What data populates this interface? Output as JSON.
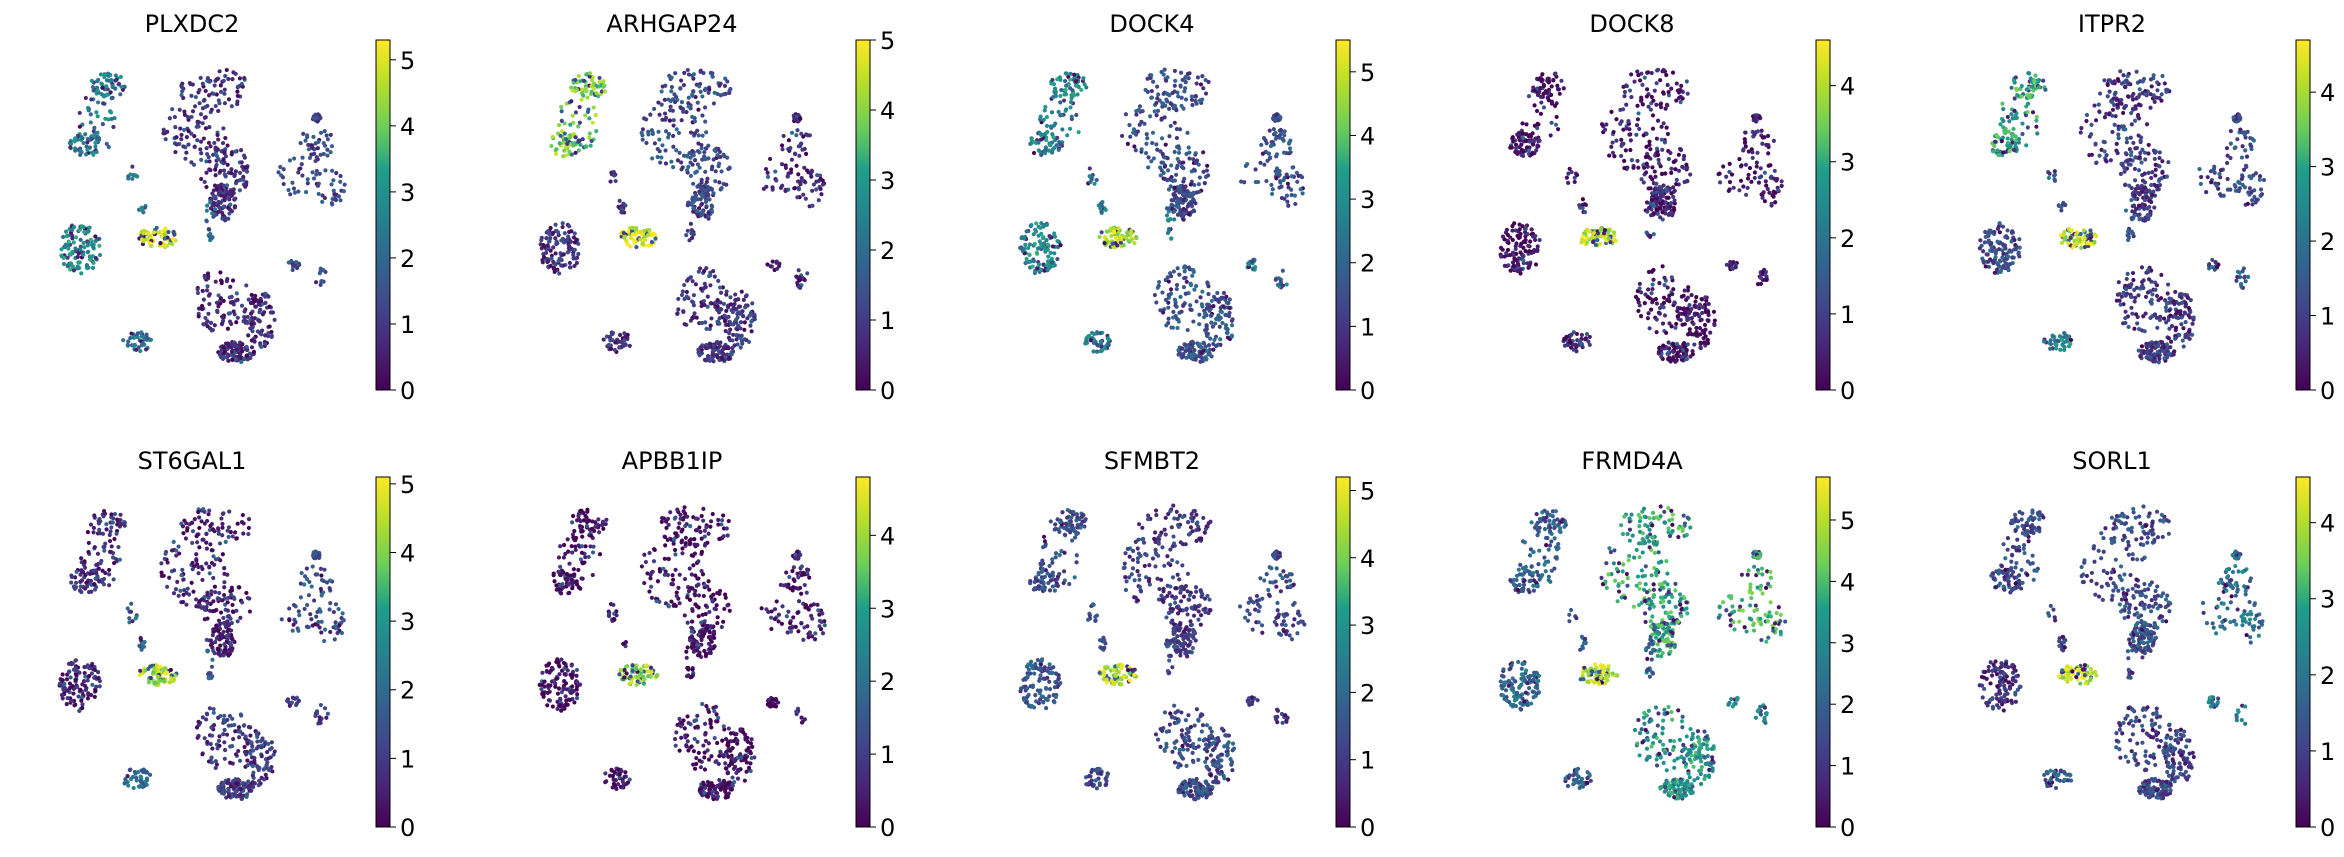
{
  "colormap": "viridis",
  "chart_data": [
    {
      "type": "scatter",
      "title": "PLXDC2",
      "colorbar": {
        "vmin": 0,
        "vmax": 5.3,
        "ticks": [
          0,
          1,
          2,
          3,
          4,
          5
        ]
      },
      "cluster_levels": {
        "top_left": 2.6,
        "small_strand": 2.2,
        "top_center": 0.8,
        "right": 1.3,
        "left": 2.9,
        "center_bright": 4.9,
        "bottom_center": 0.6,
        "bottom_small": 2.1,
        "right_small": 1.2
      }
    },
    {
      "type": "scatter",
      "title": "ARHGAP24",
      "colorbar": {
        "vmin": 0,
        "vmax": 5.0,
        "ticks": [
          0,
          1,
          2,
          3,
          4,
          5
        ]
      },
      "cluster_levels": {
        "top_left": 3.9,
        "small_strand": 1.1,
        "top_center": 1.3,
        "right": 0.5,
        "left": 0.8,
        "center_bright": 4.6,
        "bottom_center": 0.8,
        "bottom_small": 0.7,
        "right_small": 0.6
      }
    },
    {
      "type": "scatter",
      "title": "DOCK4",
      "colorbar": {
        "vmin": 0,
        "vmax": 5.5,
        "ticks": [
          0,
          1,
          2,
          3,
          4,
          5
        ]
      },
      "cluster_levels": {
        "top_left": 3.0,
        "small_strand": 2.5,
        "top_center": 1.5,
        "right": 1.6,
        "left": 3.0,
        "center_bright": 4.8,
        "bottom_center": 1.7,
        "bottom_small": 2.6,
        "right_small": 2.8
      }
    },
    {
      "type": "scatter",
      "title": "DOCK8",
      "colorbar": {
        "vmin": 0,
        "vmax": 4.6,
        "ticks": [
          0,
          1,
          2,
          3,
          4
        ]
      },
      "cluster_levels": {
        "top_left": 0.2,
        "small_strand": 0.4,
        "top_center": 0.3,
        "right": 0.3,
        "left": 0.2,
        "center_bright": 4.1,
        "bottom_center": 0.2,
        "bottom_small": 0.3,
        "right_small": 0.4
      }
    },
    {
      "type": "scatter",
      "title": "ITPR2",
      "colorbar": {
        "vmin": 0,
        "vmax": 4.7,
        "ticks": [
          0,
          1,
          2,
          3,
          4
        ]
      },
      "cluster_levels": {
        "top_left": 3.0,
        "small_strand": 1.5,
        "top_center": 0.9,
        "right": 1.2,
        "left": 1.3,
        "center_bright": 4.2,
        "bottom_center": 0.8,
        "bottom_small": 2.6,
        "right_small": 1.4
      }
    },
    {
      "type": "scatter",
      "title": "ST6GAL1",
      "colorbar": {
        "vmin": 0,
        "vmax": 5.1,
        "ticks": [
          0,
          1,
          2,
          3,
          4,
          5
        ]
      },
      "cluster_levels": {
        "top_left": 0.7,
        "small_strand": 1.8,
        "top_center": 0.5,
        "right": 1.4,
        "left": 0.5,
        "center_bright": 4.4,
        "bottom_center": 0.9,
        "bottom_small": 1.9,
        "right_small": 1.0
      }
    },
    {
      "type": "scatter",
      "title": "APBB1IP",
      "colorbar": {
        "vmin": 0,
        "vmax": 4.8,
        "ticks": [
          0,
          1,
          2,
          3,
          4
        ]
      },
      "cluster_levels": {
        "top_left": 0.1,
        "small_strand": 0.2,
        "top_center": 0.1,
        "right": 0.2,
        "left": 0.1,
        "center_bright": 3.9,
        "bottom_center": 0.1,
        "bottom_small": 0.2,
        "right_small": 0.2
      }
    },
    {
      "type": "scatter",
      "title": "SFMBT2",
      "colorbar": {
        "vmin": 0,
        "vmax": 5.2,
        "ticks": [
          0,
          1,
          2,
          3,
          4,
          5
        ]
      },
      "cluster_levels": {
        "top_left": 1.5,
        "small_strand": 1.2,
        "top_center": 1.0,
        "right": 1.2,
        "left": 1.6,
        "center_bright": 4.5,
        "bottom_center": 1.4,
        "bottom_small": 1.2,
        "right_small": 1.0
      }
    },
    {
      "type": "scatter",
      "title": "FRMD4A",
      "colorbar": {
        "vmin": 0,
        "vmax": 5.7,
        "ticks": [
          0,
          1,
          2,
          3,
          4,
          5
        ]
      },
      "cluster_levels": {
        "top_left": 2.0,
        "small_strand": 2.2,
        "top_center": 3.7,
        "right": 3.9,
        "left": 2.3,
        "center_bright": 5.0,
        "bottom_center": 3.4,
        "bottom_small": 2.1,
        "right_small": 3.0
      }
    },
    {
      "type": "scatter",
      "title": "SORL1",
      "colorbar": {
        "vmin": 0,
        "vmax": 4.6,
        "ticks": [
          0,
          1,
          2,
          3,
          4
        ]
      },
      "cluster_levels": {
        "top_left": 1.3,
        "small_strand": 1.0,
        "top_center": 1.2,
        "right": 2.0,
        "left": 0.8,
        "center_bright": 4.1,
        "bottom_center": 1.0,
        "bottom_small": 1.5,
        "right_small": 2.4
      }
    }
  ]
}
